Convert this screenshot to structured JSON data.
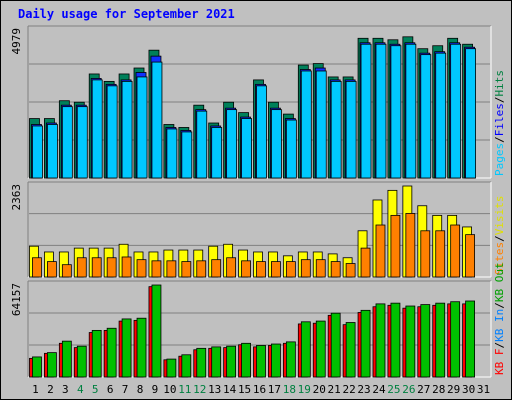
{
  "title": "Daily usage for September 2021",
  "chart_data": [
    {
      "type": "bar",
      "panel": "hits-files-pages",
      "ymax_label": "4979",
      "ylim": [
        0,
        4979
      ],
      "legend": [
        {
          "label": "Pages",
          "color": "#00c8ff"
        },
        {
          "label": "/",
          "color": "#000000"
        },
        {
          "label": "Files",
          "color": "#0000ff"
        },
        {
          "label": "/",
          "color": "#000000"
        },
        {
          "label": "Hits",
          "color": "#008040"
        }
      ],
      "categories": [
        "1",
        "2",
        "3",
        "4",
        "5",
        "6",
        "7",
        "8",
        "9",
        "10",
        "11",
        "12",
        "13",
        "14",
        "15",
        "16",
        "17",
        "18",
        "19",
        "20",
        "21",
        "22",
        "23",
        "24",
        "25",
        "26",
        "27",
        "28",
        "29",
        "30",
        "31"
      ],
      "series": [
        {
          "name": "Hits",
          "color": "#00805a",
          "values": [
            2000,
            2000,
            2600,
            2550,
            3500,
            3250,
            3500,
            3700,
            4300,
            1800,
            1700,
            2450,
            1850,
            2550,
            2200,
            3300,
            2550,
            2150,
            3800,
            3850,
            3400,
            3400,
            4700,
            4700,
            4650,
            4750,
            4350,
            4450,
            4700,
            4500,
            0
          ]
        },
        {
          "name": "Files",
          "color": "#1030ff",
          "values": [
            1800,
            1850,
            2450,
            2450,
            3350,
            3150,
            3300,
            3550,
            4100,
            1700,
            1600,
            2300,
            1750,
            2350,
            2050,
            3150,
            2350,
            2000,
            3650,
            3700,
            3300,
            3300,
            4550,
            4550,
            4500,
            4550,
            4200,
            4250,
            4550,
            4400,
            0
          ]
        },
        {
          "name": "Pages",
          "color": "#00c8ff",
          "values": [
            1750,
            1800,
            2400,
            2400,
            3300,
            3100,
            3250,
            3400,
            3900,
            1650,
            1550,
            2250,
            1700,
            2300,
            2000,
            3100,
            2300,
            1950,
            3600,
            3600,
            3250,
            3250,
            4500,
            4500,
            4450,
            4500,
            4150,
            4200,
            4500,
            4350,
            0
          ]
        }
      ]
    },
    {
      "type": "bar",
      "panel": "visits-sites",
      "ymax_label": "2363",
      "ylim": [
        0,
        2363
      ],
      "legend": [
        {
          "label": "Sites",
          "color": "#ff8000"
        },
        {
          "label": "/",
          "color": "#000000"
        },
        {
          "label": "Visits",
          "color": "#e0e000"
        }
      ],
      "categories": [
        "1",
        "2",
        "3",
        "4",
        "5",
        "6",
        "7",
        "8",
        "9",
        "10",
        "11",
        "12",
        "13",
        "14",
        "15",
        "16",
        "17",
        "18",
        "19",
        "20",
        "21",
        "22",
        "23",
        "24",
        "25",
        "26",
        "27",
        "28",
        "29",
        "30",
        "31"
      ],
      "series": [
        {
          "name": "Visits",
          "color": "#ffff00",
          "values": [
            800,
            650,
            650,
            750,
            750,
            750,
            850,
            650,
            650,
            700,
            700,
            700,
            800,
            850,
            700,
            650,
            650,
            550,
            650,
            650,
            600,
            500,
            1200,
            2000,
            2250,
            2363,
            1850,
            1600,
            1600,
            1300,
            0
          ]
        },
        {
          "name": "Sites",
          "color": "#ff8000",
          "values": [
            500,
            400,
            320,
            500,
            500,
            500,
            520,
            450,
            420,
            420,
            400,
            420,
            450,
            500,
            420,
            400,
            400,
            400,
            450,
            450,
            400,
            350,
            750,
            1350,
            1600,
            1650,
            1200,
            1200,
            1350,
            1100,
            0
          ]
        }
      ]
    },
    {
      "type": "bar",
      "panel": "kbytes",
      "ymax_label": "64157",
      "ylim": [
        0,
        64157
      ],
      "legend": [
        {
          "label": "KB F",
          "color": "#ff0000"
        },
        {
          "label": "/",
          "color": "#000000"
        },
        {
          "label": "KB In",
          "color": "#0080ff"
        },
        {
          "label": "/",
          "color": "#000000"
        },
        {
          "label": "KB Out",
          "color": "#00a000"
        }
      ],
      "categories": [
        "1",
        "2",
        "3",
        "4",
        "5",
        "6",
        "7",
        "8",
        "9",
        "10",
        "11",
        "12",
        "13",
        "14",
        "15",
        "16",
        "17",
        "18",
        "19",
        "20",
        "21",
        "22",
        "23",
        "24",
        "25",
        "26",
        "27",
        "28",
        "29",
        "30",
        "31"
      ],
      "series": [
        {
          "name": "KB F",
          "color": "#ff0000",
          "values": [
            13000,
            16500,
            23500,
            20500,
            31000,
            32500,
            39000,
            39500,
            63000,
            12000,
            14500,
            19000,
            20000,
            20500,
            22500,
            21000,
            22000,
            23500,
            37000,
            37500,
            43000,
            36500,
            45000,
            49000,
            50000,
            48000,
            49000,
            50000,
            51000,
            51000,
            0
          ]
        },
        {
          "name": "KB Out",
          "color": "#00c000",
          "values": [
            14000,
            17000,
            25000,
            21500,
            32500,
            34000,
            40500,
            41000,
            64157,
            12500,
            15500,
            20000,
            21000,
            21500,
            23500,
            22000,
            23000,
            24500,
            38500,
            39000,
            44500,
            38000,
            46500,
            51000,
            51500,
            49500,
            50500,
            51500,
            52500,
            53000,
            0
          ]
        }
      ]
    }
  ],
  "x_label_colors": [
    "#000000",
    "#000000",
    "#000000",
    "#008040",
    "#008040",
    "#000000",
    "#000000",
    "#000000",
    "#000000",
    "#000000",
    "#008040",
    "#008040",
    "#000000",
    "#000000",
    "#000000",
    "#000000",
    "#000000",
    "#008040",
    "#008040",
    "#000000",
    "#000000",
    "#000000",
    "#000000",
    "#000000",
    "#008040",
    "#008040",
    "#000000",
    "#000000",
    "#000000",
    "#000000",
    "#000000"
  ]
}
